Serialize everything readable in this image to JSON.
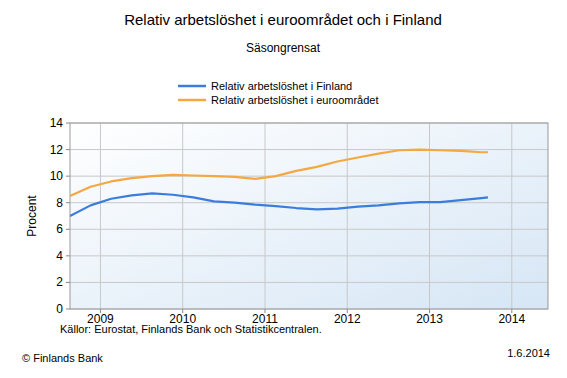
{
  "chart_data": {
    "type": "line",
    "title": "Relativ arbetslöshet i euroområdet och i Finland",
    "subtitle": "Säsongrensat",
    "y_label": "Procent",
    "source": "Källor: Eurostat, Finlands Bank och Statistikcentralen.",
    "copyright": "© Finlands Bank",
    "date": "1.6.2014",
    "x": [
      2008.63,
      2008.88,
      2009.13,
      2009.38,
      2009.63,
      2009.88,
      2010.13,
      2010.38,
      2010.63,
      2010.88,
      2011.13,
      2011.38,
      2011.63,
      2011.88,
      2012.13,
      2012.38,
      2012.63,
      2012.88,
      2013.13,
      2013.38,
      2013.63,
      2013.71
    ],
    "series": [
      {
        "name": "Relativ arbetslöshet i Finland",
        "color": "#3b7ddd",
        "values": [
          7.0,
          7.8,
          8.3,
          8.55,
          8.7,
          8.6,
          8.4,
          8.1,
          8.0,
          7.85,
          7.75,
          7.6,
          7.5,
          7.55,
          7.7,
          7.8,
          7.95,
          8.05,
          8.05,
          8.2,
          8.35,
          8.4
        ]
      },
      {
        "name": "Relativ arbetslöshet i euroområdet",
        "color": "#f5a840",
        "values": [
          8.5,
          9.2,
          9.6,
          9.85,
          10.0,
          10.1,
          10.05,
          10.0,
          9.95,
          9.8,
          10.0,
          10.4,
          10.7,
          11.1,
          11.4,
          11.7,
          11.95,
          12.0,
          11.95,
          11.9,
          11.8,
          11.8
        ]
      }
    ],
    "xlim": [
      2008.63,
      2014.44
    ],
    "xticks": [
      2009,
      2010,
      2011,
      2012,
      2013,
      2014
    ],
    "ylim": [
      0,
      14
    ],
    "yticks": [
      0,
      2,
      4,
      6,
      8,
      10,
      12,
      14
    ],
    "grid": true,
    "legend": "top"
  }
}
